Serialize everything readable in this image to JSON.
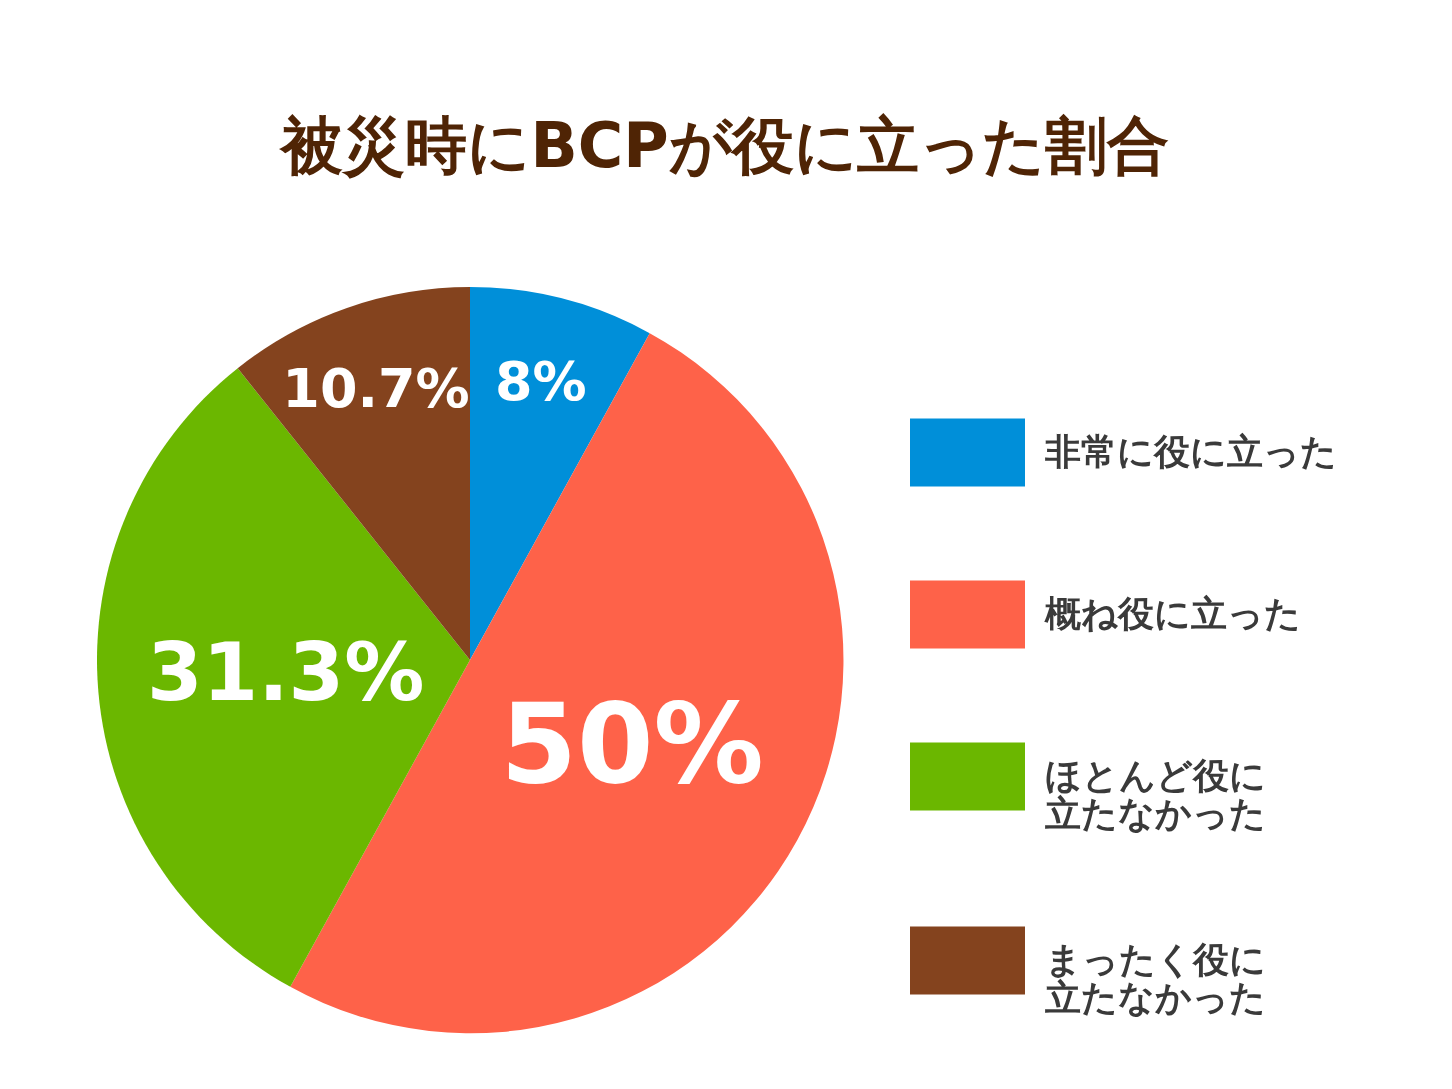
{
  "chart_data": {
    "type": "pie",
    "title": "被災時にBCPが役に立った割合",
    "categories": [
      "非常に役に立った",
      "概ね役に立った",
      "ほとんど役に立たなかった",
      "まったく役に立たなかった"
    ],
    "values": [
      8,
      50,
      31.3,
      10.7
    ],
    "value_labels": [
      "8%",
      "50%",
      "31.3%",
      "10.7%"
    ],
    "colors": [
      "#008fd9",
      "#fe6249",
      "#6bb700",
      "#84431e"
    ],
    "legend": "right"
  }
}
